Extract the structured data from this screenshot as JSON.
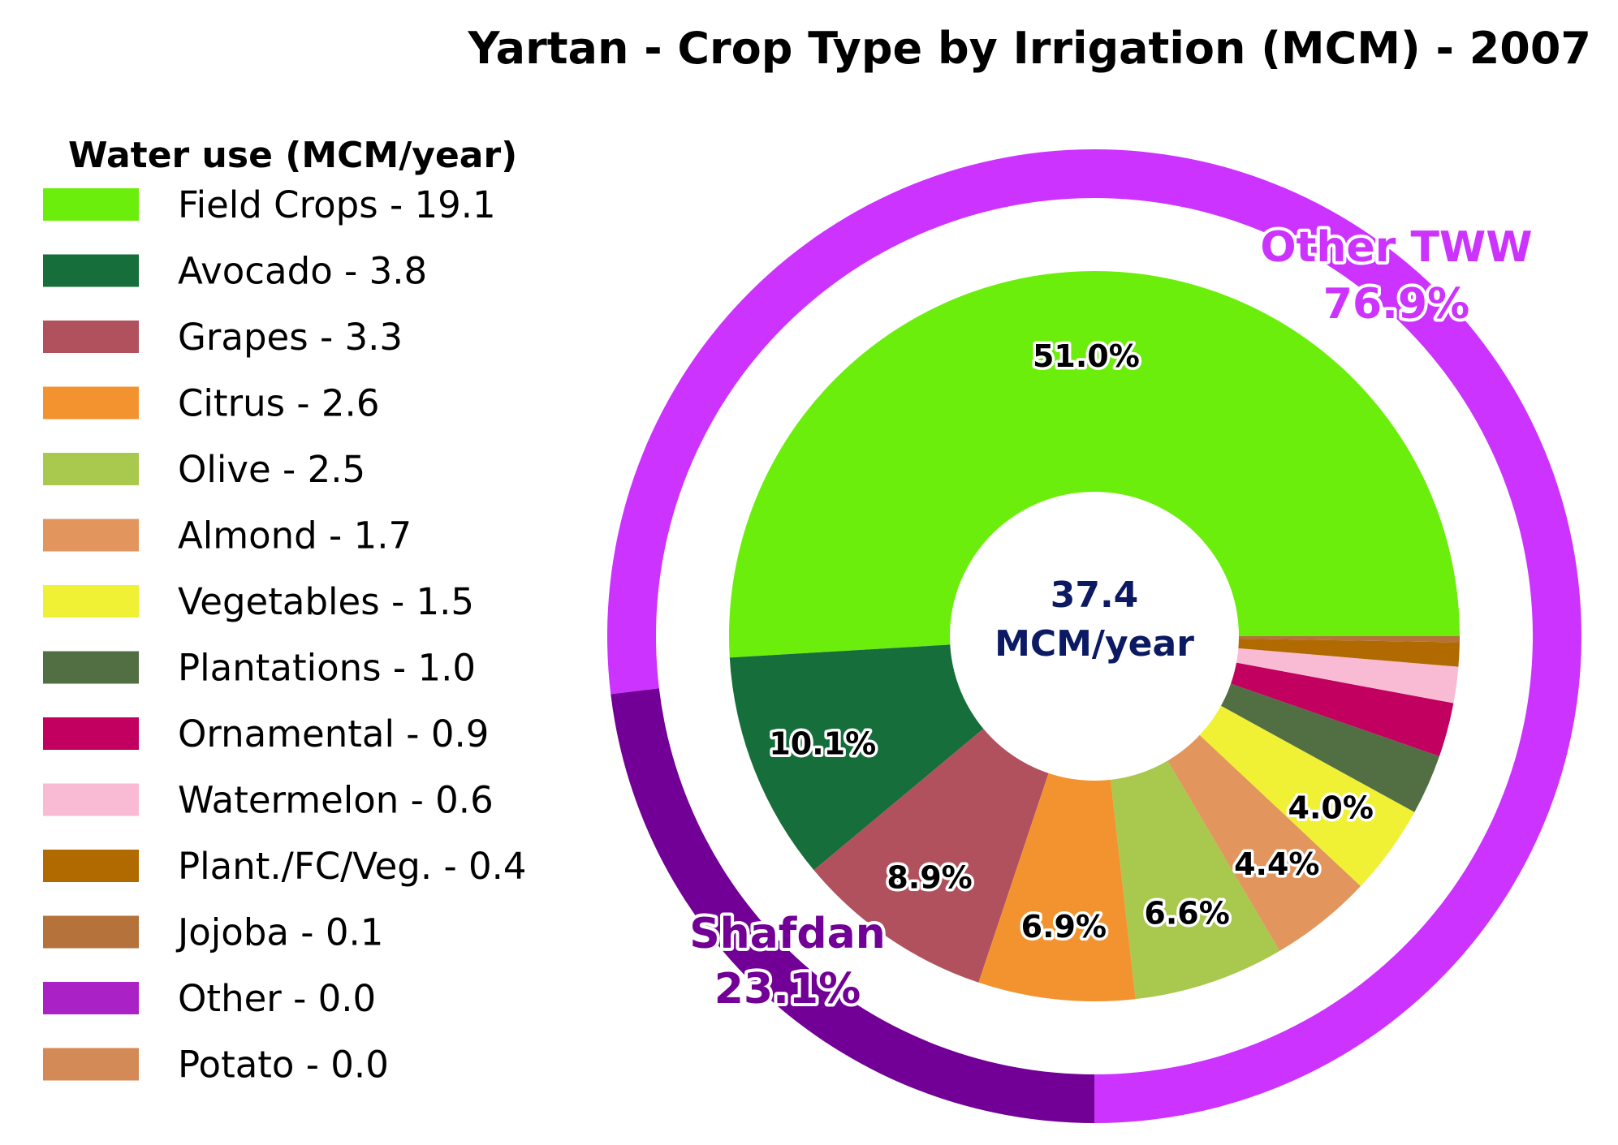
{
  "chart_data": {
    "type": "pie",
    "title": "Yartan - Crop Type by Irrigation (MCM) - 2007",
    "legend_title": "Water use (MCM/year)",
    "legend_placement": "left",
    "center_value": "37.4",
    "center_unit": "MCM/year",
    "inner": {
      "slices": [
        {
          "name": "Field Crops",
          "value": 19.1,
          "legend": "Field Crops - 19.1",
          "pct_label": "51.0%",
          "color": "#6cee0d"
        },
        {
          "name": "Avocado",
          "value": 3.8,
          "legend": "Avocado - 3.8",
          "pct_label": "10.1%",
          "color": "#166e3a"
        },
        {
          "name": "Grapes",
          "value": 3.3,
          "legend": "Grapes - 3.3",
          "pct_label": "8.9%",
          "color": "#b1515d"
        },
        {
          "name": "Citrus",
          "value": 2.6,
          "legend": "Citrus - 2.6",
          "pct_label": "6.9%",
          "color": "#f39330"
        },
        {
          "name": "Olive",
          "value": 2.5,
          "legend": "Olive - 2.5",
          "pct_label": "6.6%",
          "color": "#a8c84e"
        },
        {
          "name": "Almond",
          "value": 1.7,
          "legend": "Almond - 1.7",
          "pct_label": "4.4%",
          "color": "#e2955c"
        },
        {
          "name": "Vegetables",
          "value": 1.5,
          "legend": "Vegetables - 1.5",
          "pct_label": "4.0%",
          "color": "#f0f034"
        },
        {
          "name": "Plantations",
          "value": 1.0,
          "legend": "Plantations - 1.0",
          "pct_label": "",
          "color": "#516f43"
        },
        {
          "name": "Ornamental",
          "value": 0.9,
          "legend": "Ornamental - 0.9",
          "pct_label": "",
          "color": "#c2005f"
        },
        {
          "name": "Watermelon",
          "value": 0.6,
          "legend": "Watermelon - 0.6",
          "pct_label": "",
          "color": "#f9bbd3"
        },
        {
          "name": "Plant./FC/Veg.",
          "value": 0.4,
          "legend": "Plant./FC/Veg. - 0.4",
          "pct_label": "",
          "color": "#b06a00"
        },
        {
          "name": "Jojoba",
          "value": 0.1,
          "legend": "Jojoba - 0.1",
          "pct_label": "",
          "color": "#b5723b"
        },
        {
          "name": "Other",
          "value": 0.0,
          "legend": "Other - 0.0",
          "pct_label": "",
          "color": "#aa22c5"
        },
        {
          "name": "Potato",
          "value": 0.0,
          "legend": "Potato - 0.0",
          "pct_label": "",
          "color": "#d48a56"
        }
      ]
    },
    "outer": {
      "slices": [
        {
          "name": "Other TWW",
          "pct": 76.9,
          "label_name": "Other TWW",
          "label_pct": "76.9%",
          "color": "#cc33ff",
          "text_color": "#cc33ff"
        },
        {
          "name": "Shafdan",
          "pct": 23.1,
          "label_name": "Shafdan",
          "label_pct": "23.1%",
          "color": "#720096",
          "text_color": "#720096"
        }
      ]
    }
  }
}
